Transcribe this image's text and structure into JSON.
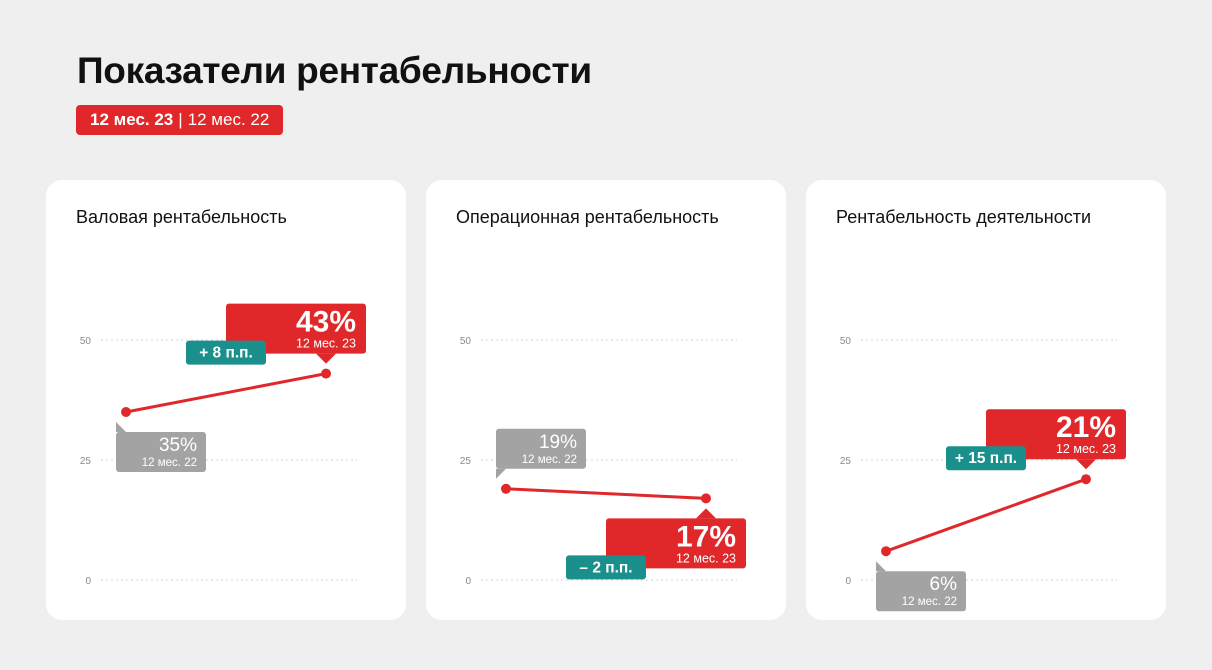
{
  "page": {
    "title": "Показатели рентабельности",
    "period_current": "12 мес. 23",
    "period_separator": "|",
    "period_previous": "12 мес. 22"
  },
  "colors": {
    "accent": "#e0282b",
    "previous": "#a3a3a3",
    "delta": "#1b8f8b",
    "grid": "#d6d6d6"
  },
  "chart_data": [
    {
      "type": "line",
      "title": "Валовая рентабельность",
      "ylim": [
        0,
        50
      ],
      "yticks": [
        "0",
        "25",
        "50"
      ],
      "x": [
        "12 мес. 22",
        "12 мес. 23"
      ],
      "values": [
        35,
        43
      ],
      "labels": [
        "35%",
        "43%"
      ],
      "period_labels": [
        "12 мес. 22",
        "12 мес. 23"
      ],
      "delta": "+ 8 п.п."
    },
    {
      "type": "line",
      "title": "Операционная рентабельность",
      "ylim": [
        0,
        50
      ],
      "yticks": [
        "0",
        "25",
        "50"
      ],
      "x": [
        "12 мес. 22",
        "12 мес. 23"
      ],
      "values": [
        19,
        17
      ],
      "labels": [
        "19%",
        "17%"
      ],
      "period_labels": [
        "12 мес. 22",
        "12 мес. 23"
      ],
      "delta": "– 2 п.п."
    },
    {
      "type": "line",
      "title": "Рентабельность деятельности",
      "ylim": [
        0,
        50
      ],
      "yticks": [
        "0",
        "25",
        "50"
      ],
      "x": [
        "12 мес. 22",
        "12 мес. 23"
      ],
      "values": [
        6,
        21
      ],
      "labels": [
        "6%",
        "21%"
      ],
      "period_labels": [
        "12 мес. 22",
        "12 мес. 23"
      ],
      "delta": "+ 15 п.п."
    }
  ]
}
